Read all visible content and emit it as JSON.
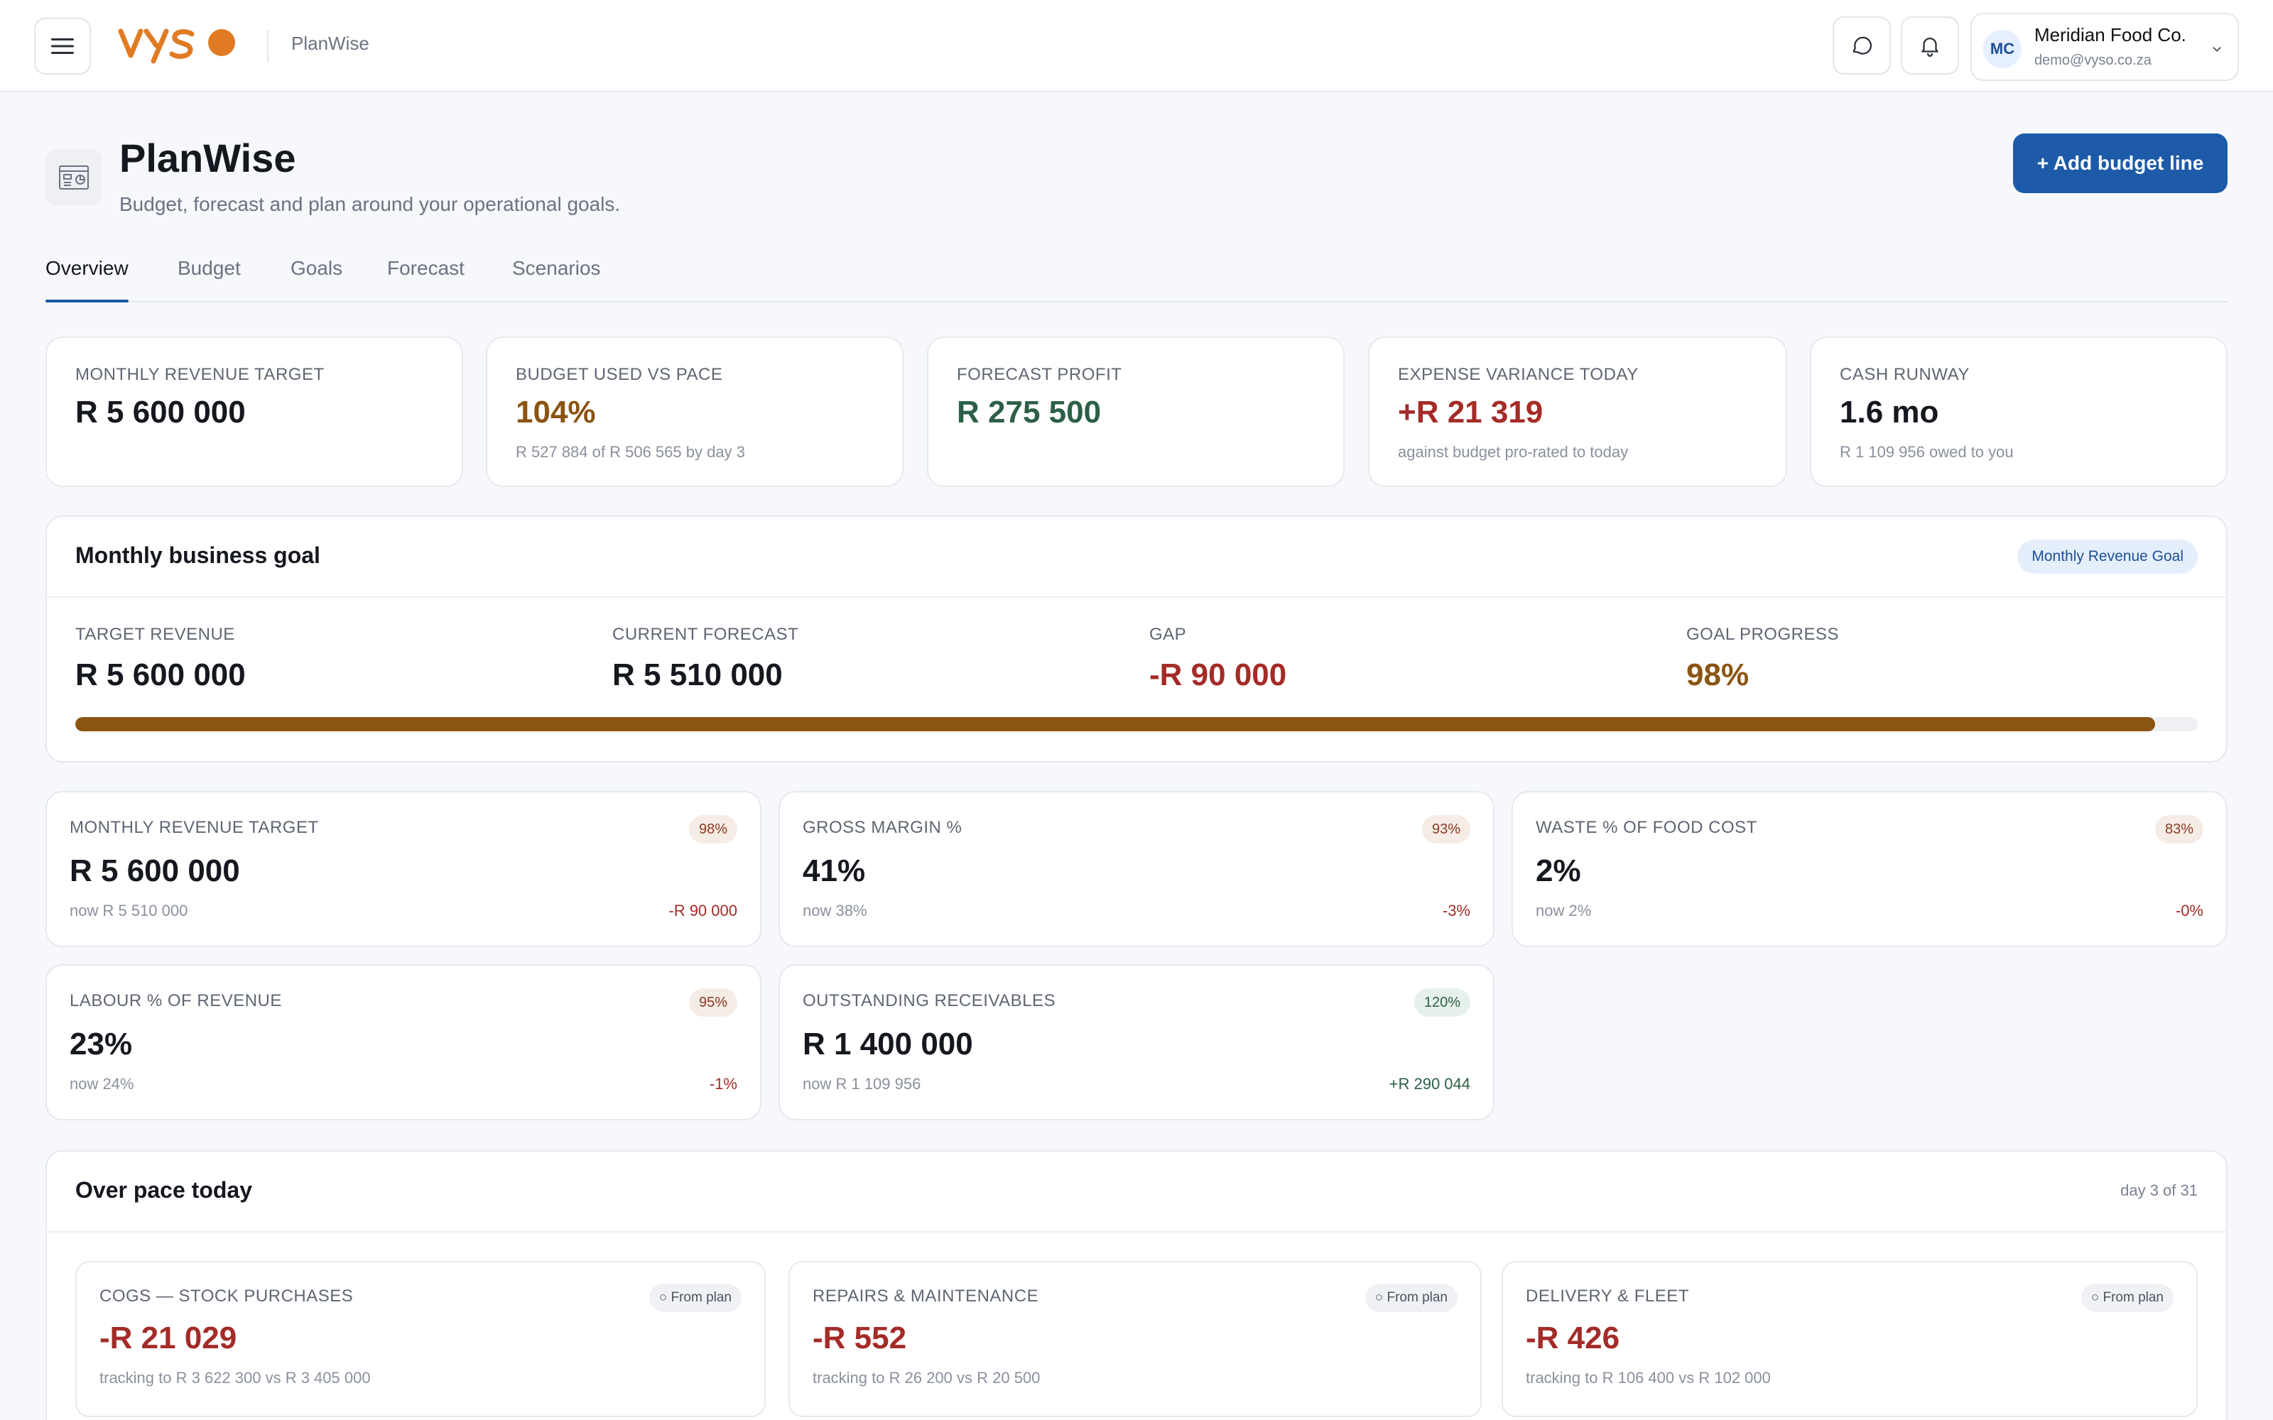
{
  "topbar": {
    "brand": "VYSO",
    "app_name": "PlanWise",
    "account": {
      "initials": "MC",
      "name": "Meridian Food Co.",
      "email": "demo@vyso.co.za"
    }
  },
  "header": {
    "title": "PlanWise",
    "subtitle": "Budget, forecast and plan around your operational goals.",
    "add_button": "+ Add budget line"
  },
  "tabs": [
    "Overview",
    "Budget",
    "Goals",
    "Forecast",
    "Scenarios"
  ],
  "kpis": [
    {
      "label": "MONTHLY REVENUE TARGET",
      "value": "R 5 600 000",
      "sub": ""
    },
    {
      "label": "BUDGET USED VS PACE",
      "value": "104%",
      "sub": "R 527 884 of R 506 565 by day 3"
    },
    {
      "label": "FORECAST PROFIT",
      "value": "R 275 500",
      "sub": ""
    },
    {
      "label": "EXPENSE VARIANCE TODAY",
      "value": "+R 21 319",
      "sub": "against budget pro-rated to today"
    },
    {
      "label": "CASH RUNWAY",
      "value": "1.6 mo",
      "sub": "R 1 109 956 owed to you"
    }
  ],
  "goal": {
    "title": "Monthly business goal",
    "tag": "Monthly Revenue Goal",
    "columns": [
      {
        "label": "TARGET REVENUE",
        "value": "R 5 600 000"
      },
      {
        "label": "CURRENT FORECAST",
        "value": "R 5 510 000"
      },
      {
        "label": "GAP",
        "value": "-R 90 000"
      },
      {
        "label": "GOAL PROGRESS",
        "value": "98%"
      }
    ],
    "progress": 0.98
  },
  "metrics": [
    {
      "label": "MONTHLY REVENUE TARGET",
      "badge": "98%",
      "value": "R 5 600 000",
      "now": "now R 5 510 000",
      "delta": "-R 90 000"
    },
    {
      "label": "GROSS MARGIN %",
      "badge": "93%",
      "value": "41%",
      "now": "now 38%",
      "delta": "-3%"
    },
    {
      "label": "WASTE % OF FOOD COST",
      "badge": "83%",
      "value": "2%",
      "now": "now 2%",
      "delta": "-0%"
    },
    {
      "label": "LABOUR % OF REVENUE",
      "badge": "95%",
      "value": "23%",
      "now": "now 24%",
      "delta": "-1%"
    },
    {
      "label": "OUTSTANDING RECEIVABLES",
      "badge": "120%",
      "value": "R 1 400 000",
      "now": "now R 1 109 956",
      "delta": "+R 290 044"
    }
  ],
  "pace": {
    "title": "Over pace today",
    "day": "day 3 of 31",
    "items": [
      {
        "label": "COGS — STOCK PURCHASES",
        "pill": "○ From plan",
        "value": "-R 21 029",
        "foot": "tracking to R 3 622 300 vs R 3 405 000"
      },
      {
        "label": "REPAIRS & MAINTENANCE",
        "pill": "○ From plan",
        "value": "-R 552",
        "foot": "tracking to R 26 200 vs R 20 500"
      },
      {
        "label": "DELIVERY & FLEET",
        "pill": "○ From plan",
        "value": "-R 426",
        "foot": "tracking to R 106 400 vs R 102 000"
      }
    ]
  },
  "colors": {
    "primary": "#1d5aa8",
    "amber": "#8a5412",
    "green": "#2c6046",
    "red": "#a42b27",
    "brand_orange": "#e07b24"
  }
}
